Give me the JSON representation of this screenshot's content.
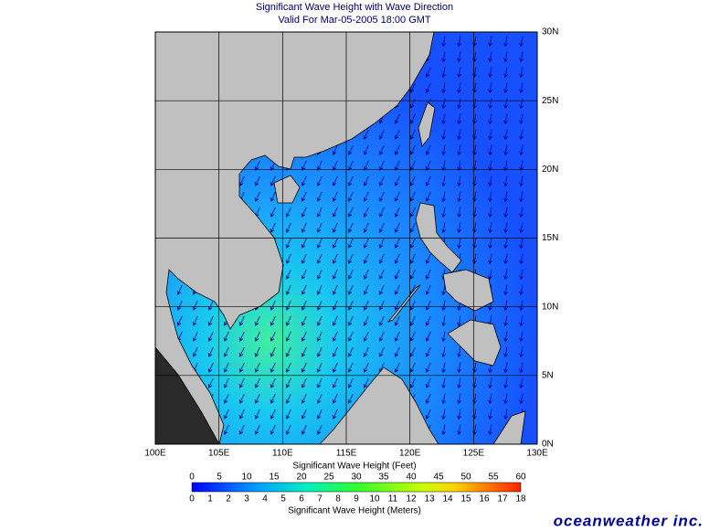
{
  "header": {
    "title": "Significant Wave Height with Wave Direction",
    "subtitle": "Valid For Mar-05-2005 18:00 GMT"
  },
  "map": {
    "lon_labels": [
      "100E",
      "105E",
      "110E",
      "115E",
      "120E",
      "125E",
      "130E"
    ],
    "lat_labels": [
      "0N",
      "5N",
      "10N",
      "15N",
      "20N",
      "25N",
      "30N"
    ]
  },
  "colorbar": {
    "feet_label": "Significant Wave Height (Feet)",
    "feet_ticks": [
      0,
      5,
      10,
      15,
      20,
      25,
      30,
      35,
      40,
      45,
      50,
      55,
      60
    ],
    "meters_label": "Significant Wave Height (Meters)",
    "meters_ticks": [
      0,
      1,
      2,
      3,
      4,
      5,
      6,
      7,
      8,
      9,
      10,
      11,
      12,
      13,
      14,
      15,
      16,
      17,
      18
    ]
  },
  "logo": "oceanweather inc."
}
